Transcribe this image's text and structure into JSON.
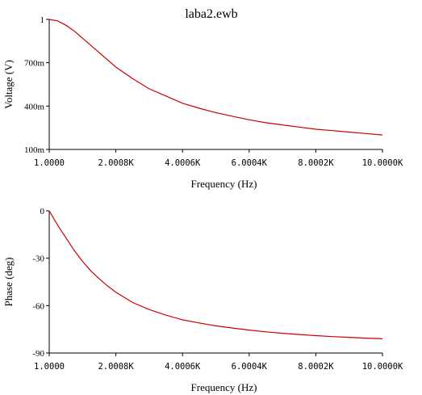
{
  "window": {
    "title": "laba2.ewb"
  },
  "chart_data": [
    {
      "type": "line",
      "title": "laba2.ewb",
      "xlabel": "Frequency (Hz)",
      "ylabel": "Voltage (V)",
      "xlim": [
        1,
        10000
      ],
      "ylim": [
        0.1,
        1
      ],
      "xticks": [
        1,
        2000.8,
        4000.6,
        6000.4,
        8000.2,
        10000
      ],
      "xtick_labels": [
        "1.0000",
        "2.0008K",
        "4.0006K",
        "6.0004K",
        "8.0002K",
        "10.0000K"
      ],
      "yticks": [
        0.1,
        0.4,
        0.7,
        1
      ],
      "ytick_labels": [
        "100m",
        "400m",
        "700m",
        "1"
      ],
      "grid": false,
      "series_color": "#cc0000",
      "series": [
        {
          "x": [
            1,
            250,
            500,
            750,
            1000,
            1250,
            1500,
            1750,
            2000,
            2500,
            3000,
            3500,
            4000,
            4500,
            5000,
            5500,
            6000,
            6500,
            7000,
            7500,
            8000,
            8500,
            9000,
            9500,
            10000
          ],
          "y": [
            1.0,
            0.99,
            0.96,
            0.92,
            0.87,
            0.82,
            0.77,
            0.72,
            0.67,
            0.59,
            0.52,
            0.47,
            0.42,
            0.385,
            0.355,
            0.33,
            0.305,
            0.285,
            0.27,
            0.255,
            0.24,
            0.23,
            0.22,
            0.21,
            0.2
          ]
        }
      ]
    },
    {
      "type": "line",
      "xlabel": "Frequency (Hz)",
      "ylabel": "Phase (deg)",
      "xlim": [
        1,
        10000
      ],
      "ylim": [
        -90,
        0
      ],
      "xticks": [
        1,
        2000.8,
        4000.6,
        6000.4,
        8000.2,
        10000
      ],
      "xtick_labels": [
        "1.0000",
        "2.0008K",
        "4.0006K",
        "6.0004K",
        "8.0002K",
        "10.0000K"
      ],
      "yticks": [
        0,
        -30,
        -60,
        -90
      ],
      "ytick_labels": [
        "0",
        "-30",
        "-60",
        "-90"
      ],
      "grid": false,
      "series_color": "#cc0000",
      "series": [
        {
          "x": [
            1,
            250,
            500,
            750,
            1000,
            1250,
            1500,
            1750,
            2000,
            2500,
            3000,
            3500,
            4000,
            4500,
            5000,
            5500,
            6000,
            6500,
            7000,
            7500,
            8000,
            8500,
            9000,
            9500,
            10000
          ],
          "y": [
            0,
            -9,
            -17,
            -25,
            -32,
            -38,
            -43,
            -47.5,
            -51.5,
            -58,
            -62.5,
            -66,
            -69,
            -71,
            -72.8,
            -74.2,
            -75.5,
            -76.6,
            -77.5,
            -78.3,
            -79,
            -79.6,
            -80.1,
            -80.6,
            -81
          ]
        }
      ]
    }
  ]
}
